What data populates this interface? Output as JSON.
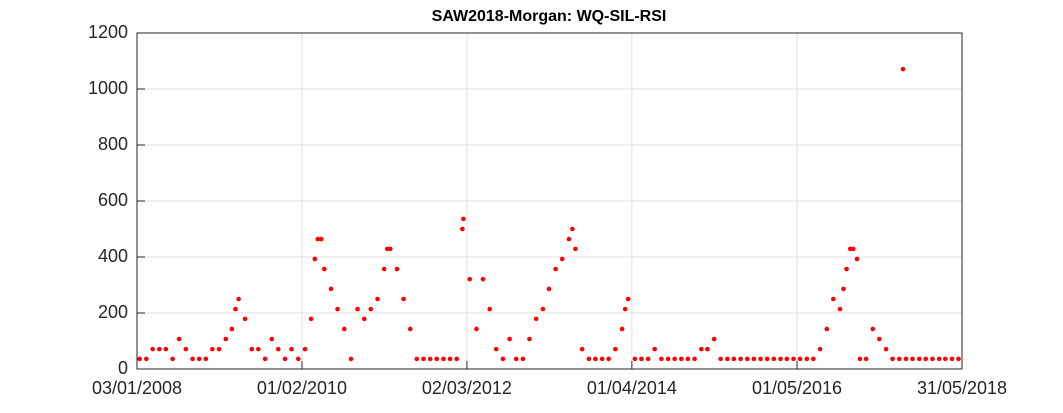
{
  "chart_data": {
    "type": "scatter",
    "title": "SAW2018-Morgan: WQ-SIL-RSI",
    "color": "#ff0000",
    "grid": true,
    "xlim": [
      "2008-01-03",
      "2018-05-31"
    ],
    "xticks": [
      {
        "value": "2008-01-03",
        "label": "03/01/2008"
      },
      {
        "value": "2010-02-01",
        "label": "01/02/2010"
      },
      {
        "value": "2012-03-02",
        "label": "02/03/2012"
      },
      {
        "value": "2014-04-01",
        "label": "01/04/2014"
      },
      {
        "value": "2016-05-01",
        "label": "01/05/2016"
      },
      {
        "value": "2018-05-31",
        "label": "31/05/2018"
      }
    ],
    "ylim": [
      0,
      1200
    ],
    "yticks": [
      0,
      200,
      400,
      600,
      800,
      1000,
      1200
    ],
    "x": [
      "2008-01-15",
      "2008-02-15",
      "2008-03-15",
      "2008-04-15",
      "2008-05-15",
      "2008-06-15",
      "2008-07-15",
      "2008-08-15",
      "2008-09-15",
      "2008-10-15",
      "2008-11-15",
      "2008-12-15",
      "2009-01-15",
      "2009-02-15",
      "2009-03-15",
      "2009-04-01",
      "2009-04-15",
      "2009-05-15",
      "2009-06-15",
      "2009-07-15",
      "2009-08-15",
      "2009-09-15",
      "2009-10-15",
      "2009-11-15",
      "2009-12-15",
      "2010-01-15",
      "2010-02-15",
      "2010-03-15",
      "2010-04-01",
      "2010-04-15",
      "2010-05-01",
      "2010-05-15",
      "2010-06-15",
      "2010-07-15",
      "2010-08-15",
      "2010-09-15",
      "2010-10-15",
      "2010-11-15",
      "2010-12-15",
      "2011-01-15",
      "2011-02-15",
      "2011-03-01",
      "2011-03-15",
      "2011-04-15",
      "2011-05-15",
      "2011-06-15",
      "2011-07-15",
      "2011-08-15",
      "2011-09-15",
      "2011-10-15",
      "2011-11-15",
      "2011-12-15",
      "2012-01-15",
      "2012-02-10",
      "2012-02-15",
      "2012-03-15",
      "2012-04-15",
      "2012-05-15",
      "2012-06-15",
      "2012-07-15",
      "2012-08-15",
      "2012-09-15",
      "2012-10-15",
      "2012-11-15",
      "2012-12-15",
      "2013-01-15",
      "2013-02-15",
      "2013-03-15",
      "2013-04-15",
      "2013-05-15",
      "2013-06-15",
      "2013-07-01",
      "2013-07-15",
      "2013-08-15",
      "2013-09-15",
      "2013-10-15",
      "2013-11-15",
      "2013-12-15",
      "2014-01-15",
      "2014-02-15",
      "2014-03-01",
      "2014-03-15",
      "2014-04-15",
      "2014-05-15",
      "2014-06-15",
      "2014-07-15",
      "2014-08-15",
      "2014-09-15",
      "2014-10-15",
      "2014-11-15",
      "2014-12-15",
      "2015-01-15",
      "2015-02-15",
      "2015-03-15",
      "2015-04-15",
      "2015-05-15",
      "2015-06-15",
      "2015-07-15",
      "2015-08-15",
      "2015-09-15",
      "2015-10-15",
      "2015-11-15",
      "2015-12-15",
      "2016-01-15",
      "2016-02-15",
      "2016-03-15",
      "2016-04-15",
      "2016-05-15",
      "2016-06-15",
      "2016-07-15",
      "2016-08-15",
      "2016-09-15",
      "2016-10-15",
      "2016-11-15",
      "2016-12-01",
      "2016-12-15",
      "2017-01-01",
      "2017-01-15",
      "2017-02-01",
      "2017-02-15",
      "2017-03-15",
      "2017-04-15",
      "2017-05-15",
      "2017-06-15",
      "2017-07-15",
      "2017-08-15",
      "2017-09-01",
      "2017-09-15",
      "2017-10-15",
      "2017-11-15",
      "2017-12-15",
      "2018-01-15",
      "2018-02-15",
      "2018-03-15",
      "2018-04-15",
      "2018-05-15"
    ],
    "values": [
      36,
      36,
      71,
      71,
      71,
      36,
      107,
      71,
      36,
      36,
      36,
      71,
      71,
      107,
      143,
      214,
      250,
      179,
      71,
      71,
      36,
      107,
      71,
      36,
      71,
      36,
      71,
      179,
      393,
      464,
      464,
      357,
      286,
      214,
      143,
      36,
      214,
      179,
      214,
      250,
      357,
      429,
      429,
      357,
      250,
      143,
      36,
      36,
      36,
      36,
      36,
      36,
      36,
      500,
      536,
      321,
      143,
      321,
      214,
      71,
      36,
      107,
      36,
      36,
      107,
      179,
      214,
      286,
      357,
      393,
      464,
      500,
      429,
      71,
      36,
      36,
      36,
      36,
      71,
      143,
      214,
      250,
      36,
      36,
      36,
      71,
      36,
      36,
      36,
      36,
      36,
      36,
      71,
      71,
      107,
      36,
      36,
      36,
      36,
      36,
      36,
      36,
      36,
      36,
      36,
      36,
      36,
      36,
      36,
      36,
      71,
      143,
      250,
      214,
      286,
      357,
      429,
      429,
      393,
      36,
      36,
      143,
      107,
      71,
      36,
      36,
      1071,
      36,
      36,
      36,
      36,
      36,
      36,
      36,
      36,
      36
    ]
  }
}
